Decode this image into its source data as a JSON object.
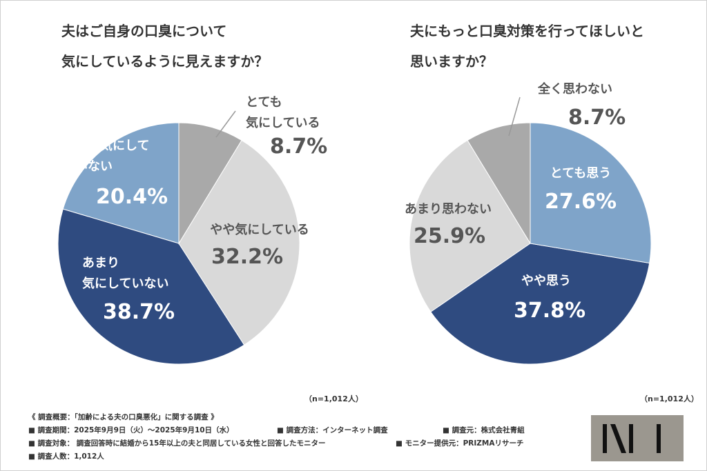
{
  "chart_data": [
    {
      "type": "pie",
      "title": "夫はご自身の口臭について\n気にしているように見えますか？",
      "categories": [
        "とても\n気にしている",
        "やや気にしている",
        "あまり\n気にしていない",
        "全く気にして\nいない"
      ],
      "values": [
        8.7,
        32.2,
        38.7,
        20.4
      ],
      "value_labels": [
        "8.7%",
        "32.2%",
        "38.7%",
        "20.4%"
      ],
      "colors": [
        "#a9a9a9",
        "#d9d9d9",
        "#2f4b80",
        "#7fa4c9"
      ],
      "note": "（n=1,012人）"
    },
    {
      "type": "pie",
      "title": "夫にもっと口臭対策を行ってほしいと\n思いますか？",
      "categories": [
        "とても思う",
        "やや思う",
        "あまり思わない",
        "全く思わない"
      ],
      "values": [
        27.6,
        37.8,
        25.9,
        8.7
      ],
      "value_labels": [
        "27.6%",
        "37.8%",
        "25.9%",
        "8.7%"
      ],
      "colors": [
        "#7fa4c9",
        "#2f4b80",
        "#d9d9d9",
        "#a9a9a9"
      ],
      "note": "（n=1,012人）"
    }
  ],
  "notes": [
    [
      "《 調査概要：「加齢による夫の口臭悪化」に関する調査 》"
    ],
    [
      "■ 調査期間：2025年9月9日（火）～2025年9月10日（水）",
      "■ 調査方法：インターネット調査",
      "■ 調査元：株式会社青組"
    ],
    [
      "■ 調査対象： 調査回答時に結婚から15年以上の夫と同居している女性と回答したモニター",
      "■ モニター提供元：PRIZMAリサーチ"
    ],
    [
      "■ 調査人数：1,012人"
    ]
  ]
}
